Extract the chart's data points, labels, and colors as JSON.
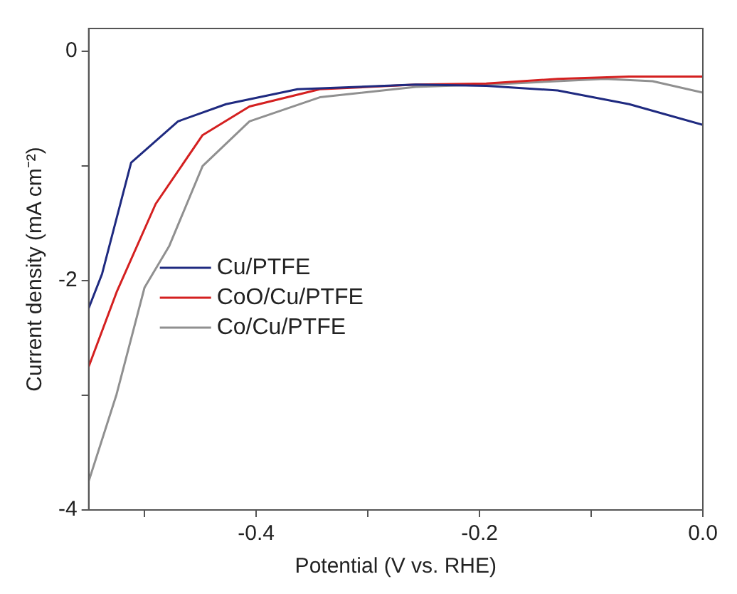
{
  "chart_data": {
    "type": "line",
    "xlabel": "Potential (V vs. RHE)",
    "ylabel": "Current density (mA cm⁻²)",
    "xlim": [
      -0.55,
      0
    ],
    "ylim": [
      -4,
      0.2
    ],
    "xticks": [
      {
        "value": -0.5,
        "label": null
      },
      -0.4,
      {
        "value": -0.3,
        "label": null
      },
      -0.2,
      {
        "value": -0.1,
        "label": null
      },
      {
        "value": 0,
        "label": "0.0"
      }
    ],
    "yticks": [
      -4,
      {
        "value": -3,
        "label": null
      },
      -2,
      {
        "value": -1,
        "label": null
      },
      0
    ],
    "grid": false,
    "legend": "center left",
    "marker": "none",
    "line_style": "solid",
    "series": [
      {
        "name": "Cu/PTFE",
        "color": "#1f2a80",
        "x": [
          -0.55,
          -0.538,
          -0.512,
          -0.47,
          -0.427,
          -0.363,
          -0.257,
          -0.194,
          -0.13,
          -0.066,
          0
        ],
        "values": [
          -2.24,
          -1.94,
          -0.97,
          -0.61,
          -0.46,
          -0.33,
          -0.29,
          -0.3,
          -0.34,
          -0.46,
          -0.64
        ]
      },
      {
        "name": "CoO/Cu/PTFE",
        "color": "#d42020",
        "x": [
          -0.55,
          -0.525,
          -0.49,
          -0.448,
          -0.406,
          -0.343,
          -0.257,
          -0.194,
          -0.13,
          -0.066,
          0
        ],
        "values": [
          -2.75,
          -2.1,
          -1.33,
          -0.73,
          -0.48,
          -0.33,
          -0.29,
          -0.28,
          -0.24,
          -0.22,
          -0.22
        ]
      },
      {
        "name": "Co/Cu/PTFE",
        "color": "#909090",
        "x": [
          -0.55,
          -0.525,
          -0.5,
          -0.478,
          -0.448,
          -0.406,
          -0.343,
          -0.257,
          -0.172,
          -0.088,
          -0.045,
          0
        ],
        "values": [
          -3.75,
          -2.99,
          -2.06,
          -1.7,
          -1.0,
          -0.61,
          -0.4,
          -0.31,
          -0.28,
          -0.24,
          -0.26,
          -0.36
        ]
      }
    ]
  }
}
